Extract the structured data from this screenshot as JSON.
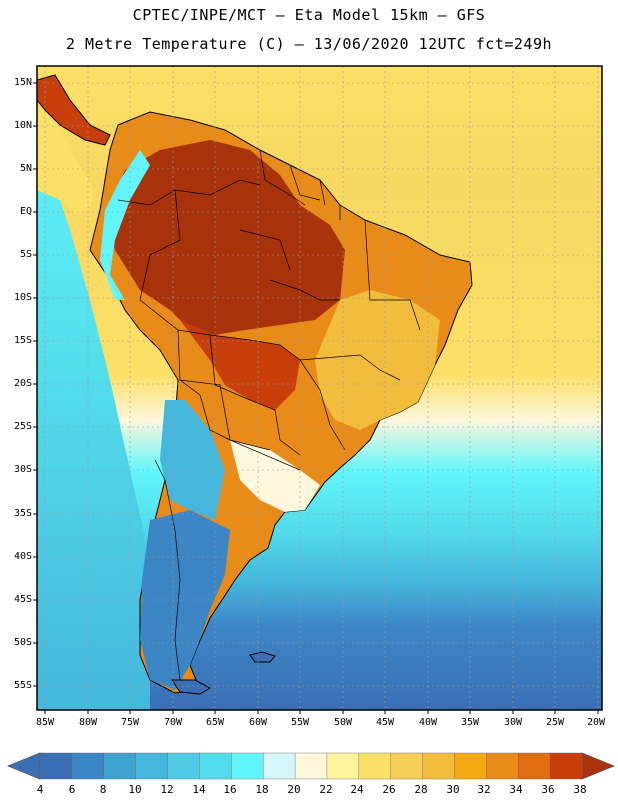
{
  "title_line1": "CPTEC/INPE/MCT –  Eta Model 15km – GFS",
  "title_line2": "2 Metre Temperature (C) – 13/06/2020 12UTC fct=249h",
  "lat_labels": [
    "15N",
    "10N",
    "5N",
    "EQ",
    "5S",
    "10S",
    "15S",
    "20S",
    "25S",
    "30S",
    "35S",
    "40S",
    "45S",
    "50S",
    "55S"
  ],
  "lon_labels": [
    "85W",
    "80W",
    "75W",
    "70W",
    "65W",
    "60W",
    "55W",
    "50W",
    "45W",
    "40W",
    "35W",
    "30W",
    "25W",
    "20W"
  ],
  "colorbar": {
    "labels": [
      "4",
      "6",
      "8",
      "10",
      "12",
      "14",
      "16",
      "18",
      "20",
      "22",
      "24",
      "26",
      "28",
      "30",
      "32",
      "34",
      "36",
      "38"
    ],
    "colors": [
      "#3b6fb5",
      "#3d86c6",
      "#3fa2cf",
      "#45b7dd",
      "#4fcbe6",
      "#52dceb",
      "#62f6fb",
      "#d5f6fb",
      "#fdf7de",
      "#fff59f",
      "#fbe067",
      "#f5ce55",
      "#f2bc3c",
      "#f2a914",
      "#e98b19",
      "#e06d0f",
      "#c83e0a",
      "#a8320a"
    ]
  }
}
